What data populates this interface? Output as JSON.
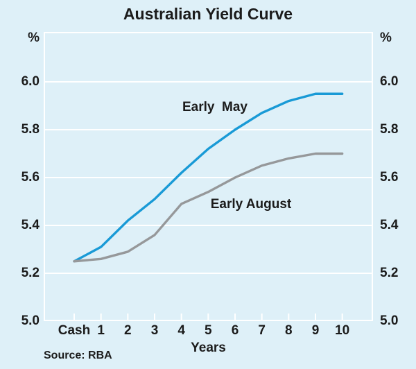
{
  "title": "Australian Yield Curve",
  "source": "Source: RBA",
  "axis": {
    "unit_left": "%",
    "unit_right": "%",
    "x_label": "Years",
    "x_tick_labels": [
      "Cash",
      "1",
      "2",
      "3",
      "4",
      "5",
      "6",
      "7",
      "8",
      "9",
      "10"
    ],
    "y_tick_labels": [
      "6.0",
      "5.8",
      "5.6",
      "5.4",
      "5.2",
      "5.0"
    ],
    "y_tick_values": [
      6.0,
      5.8,
      5.6,
      5.4,
      5.2,
      5.0
    ]
  },
  "annotations": {
    "may_label": "Early  May",
    "august_label": "Early August"
  },
  "colors": {
    "background": "#def0f8",
    "grid": "#ffffff",
    "text": "#1b1b1b",
    "early_may": "#199ad6",
    "early_august": "#96989a"
  },
  "chart_data": {
    "type": "line",
    "title": "Australian Yield Curve",
    "xlabel": "Years",
    "ylabel": "%",
    "categories": [
      "Cash",
      "1",
      "2",
      "3",
      "4",
      "5",
      "6",
      "7",
      "8",
      "9",
      "10"
    ],
    "series": [
      {
        "name": "Early May",
        "color": "#199ad6",
        "values": [
          5.25,
          5.31,
          5.42,
          5.51,
          5.62,
          5.72,
          5.8,
          5.87,
          5.92,
          5.95,
          5.95
        ]
      },
      {
        "name": "Early August",
        "color": "#96989a",
        "values": [
          5.25,
          5.26,
          5.29,
          5.36,
          5.49,
          5.54,
          5.6,
          5.65,
          5.68,
          5.7,
          5.7
        ]
      }
    ],
    "ylim": [
      5.0,
      6.2
    ],
    "y_gridlines": [
      5.2,
      5.4,
      5.6,
      5.8,
      6.0
    ],
    "grid": true,
    "legend_position": "inline-annotations",
    "source": "RBA"
  }
}
